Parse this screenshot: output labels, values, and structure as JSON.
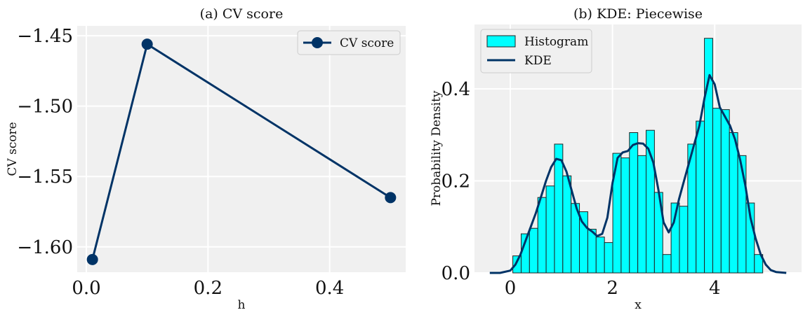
{
  "chart_data": [
    {
      "type": "line",
      "title": "(a) CV score",
      "xlabel": "h",
      "ylabel": "CV score",
      "xlim": [
        -0.015,
        0.525
      ],
      "ylim": [
        -1.618,
        -1.443
      ],
      "xticks": [
        0.0,
        0.2,
        0.4
      ],
      "xtick_labels": [
        "0.0",
        "0.2",
        "0.4"
      ],
      "yticks": [
        -1.45,
        -1.5,
        -1.55,
        -1.6
      ],
      "ytick_labels": [
        "−1.45",
        "−1.50",
        "−1.55",
        "−1.60"
      ],
      "series": [
        {
          "name": "CV score",
          "x": [
            0.01,
            0.1,
            0.5
          ],
          "y": [
            -1.609,
            -1.456,
            -1.565
          ]
        }
      ],
      "legend": "top-right",
      "grid": true,
      "colors": {
        "line": "#003366",
        "background": "#f0f0f0"
      }
    },
    {
      "type": "bar",
      "title": "(b) KDE: Piecewise",
      "xlabel": "x",
      "ylabel": "Probability Density",
      "xlim": [
        -0.7,
        5.7
      ],
      "ylim": [
        0,
        0.54
      ],
      "xticks": [
        0,
        2,
        4
      ],
      "xtick_labels": [
        "0",
        "2",
        "4"
      ],
      "yticks": [
        0.0,
        0.2,
        0.4
      ],
      "ytick_labels": [
        "0.0",
        "0.2",
        "0.4"
      ],
      "histogram": {
        "name": "Histogram",
        "bin_start": 0.05,
        "bin_width": 0.163,
        "values": [
          0.037,
          0.085,
          0.097,
          0.164,
          0.189,
          0.28,
          0.211,
          0.151,
          0.133,
          0.095,
          0.078,
          0.066,
          0.26,
          0.25,
          0.305,
          0.255,
          0.31,
          0.175,
          0.04,
          0.152,
          0.145,
          0.28,
          0.33,
          0.51,
          0.358,
          0.355,
          0.305,
          0.255,
          0.152,
          0.04
        ]
      },
      "kde": {
        "name": "KDE",
        "x": [
          -0.4,
          -0.2,
          0.0,
          0.1,
          0.2,
          0.3,
          0.4,
          0.5,
          0.6,
          0.7,
          0.8,
          0.9,
          1.0,
          1.1,
          1.2,
          1.3,
          1.4,
          1.5,
          1.6,
          1.7,
          1.8,
          1.9,
          2.0,
          2.1,
          2.2,
          2.3,
          2.4,
          2.5,
          2.6,
          2.7,
          2.8,
          2.9,
          3.0,
          3.1,
          3.2,
          3.3,
          3.4,
          3.5,
          3.6,
          3.7,
          3.8,
          3.9,
          4.0,
          4.1,
          4.2,
          4.3,
          4.4,
          4.5,
          4.6,
          4.7,
          4.8,
          4.9,
          5.0,
          5.1,
          5.2,
          5.4
        ],
        "y": [
          0.0,
          0.0,
          0.005,
          0.018,
          0.04,
          0.07,
          0.1,
          0.13,
          0.165,
          0.2,
          0.23,
          0.248,
          0.245,
          0.22,
          0.18,
          0.14,
          0.112,
          0.098,
          0.09,
          0.08,
          0.085,
          0.12,
          0.195,
          0.25,
          0.262,
          0.265,
          0.278,
          0.282,
          0.281,
          0.27,
          0.24,
          0.18,
          0.11,
          0.088,
          0.11,
          0.16,
          0.2,
          0.24,
          0.28,
          0.32,
          0.38,
          0.43,
          0.41,
          0.36,
          0.34,
          0.32,
          0.29,
          0.245,
          0.19,
          0.12,
          0.075,
          0.04,
          0.018,
          0.006,
          0.002,
          0.0
        ]
      },
      "legend": "top-left",
      "grid": true,
      "colors": {
        "bar_fill": "#00ffff",
        "bar_edge": "#222222",
        "line": "#003366",
        "background": "#f0f0f0"
      }
    }
  ]
}
